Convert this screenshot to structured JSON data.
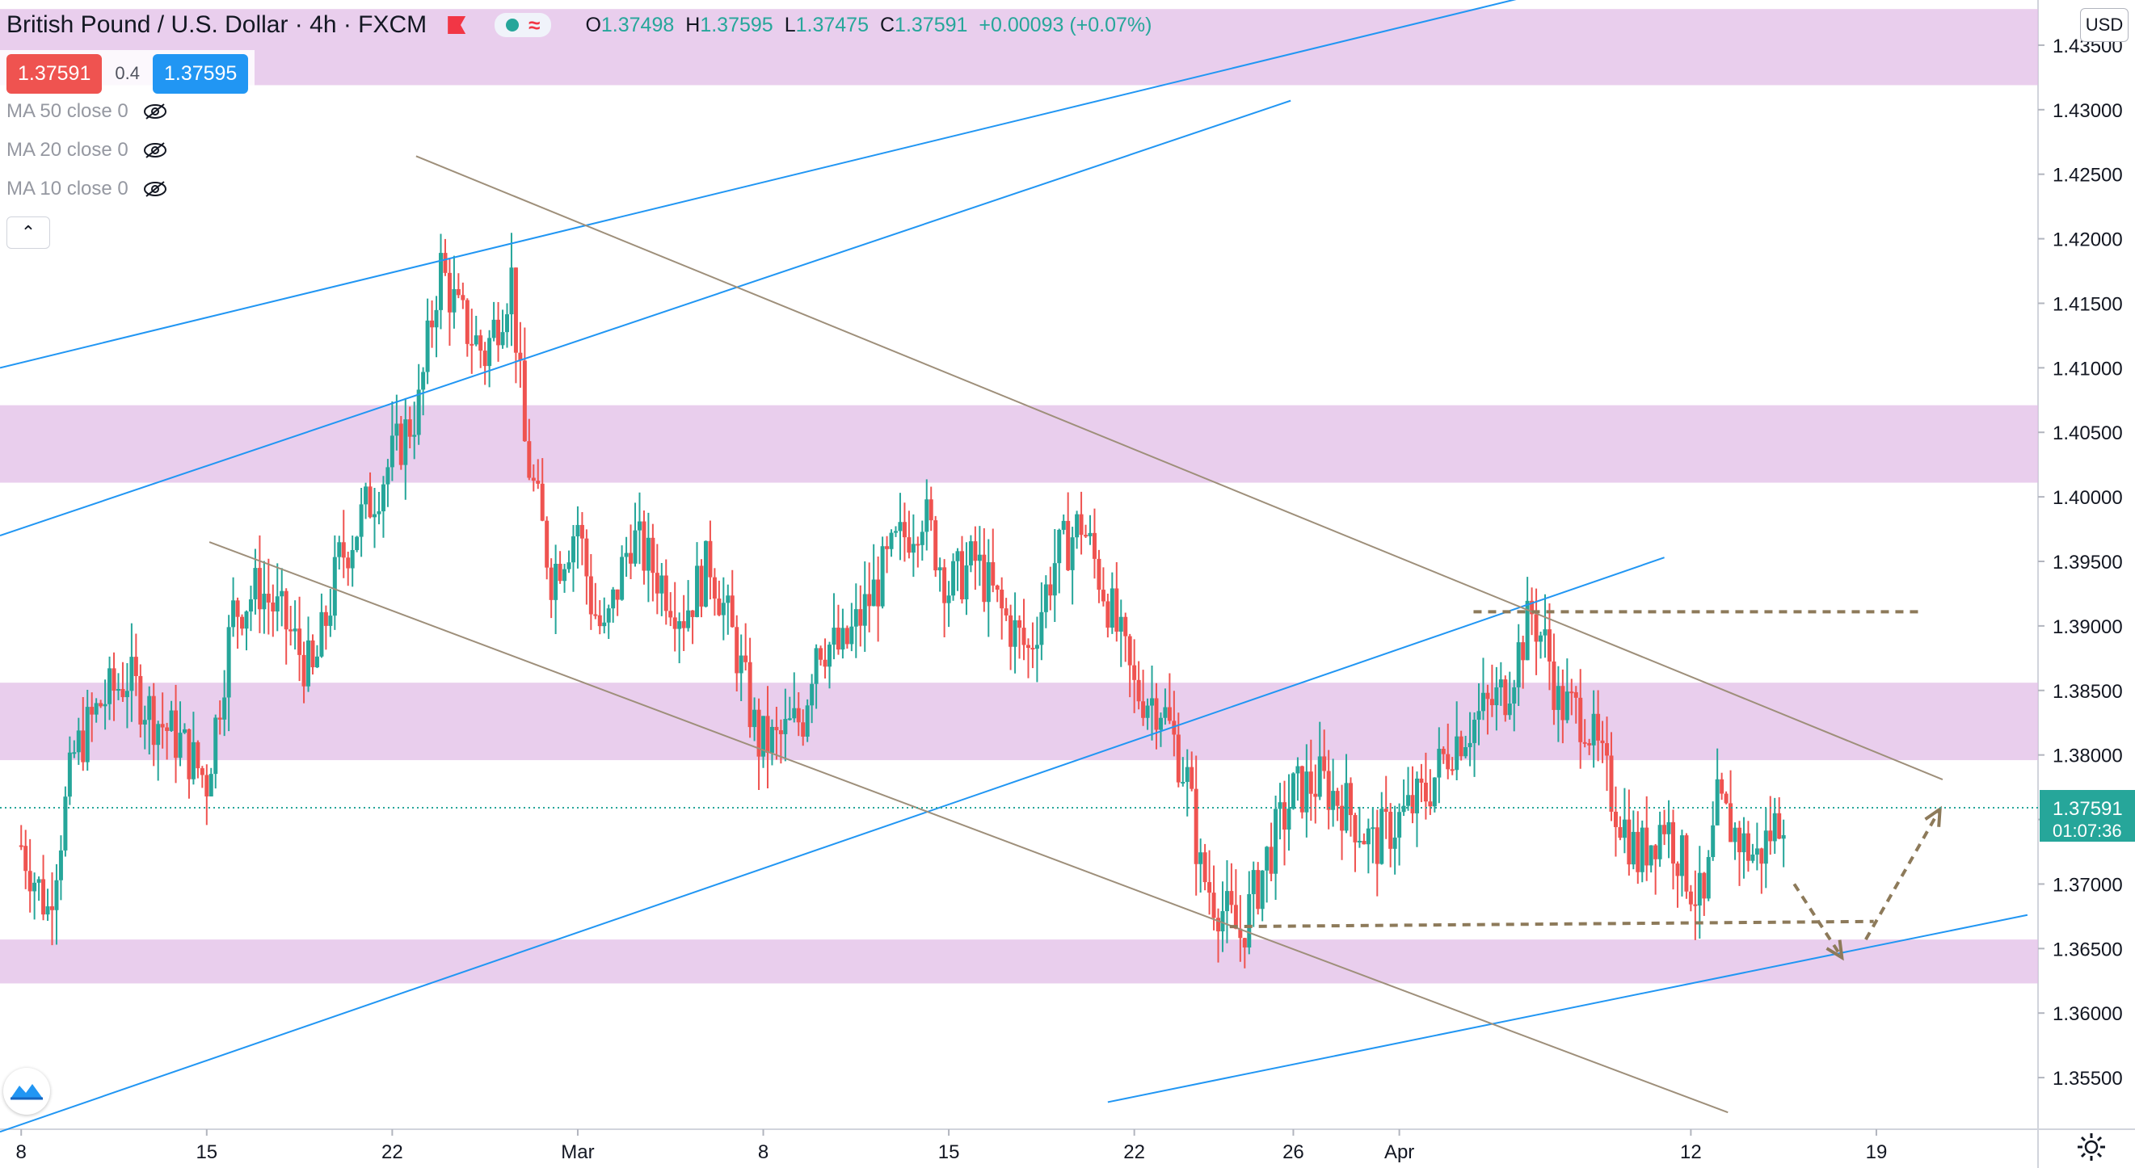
{
  "header": {
    "symbol_title": "British Pound / U.S. Dollar · 4h · FXCM",
    "ohlc": {
      "o_label": "O",
      "o": "1.37498",
      "h_label": "H",
      "h": "1.37595",
      "l_label": "L",
      "l": "1.37475",
      "c_label": "C",
      "c": "1.37591",
      "change": "+0.00093 (+0.07%)"
    },
    "colors": {
      "flag": "#f23645",
      "dot": "#26a69a",
      "wave": "#f23645"
    },
    "icons": [
      "flag-icon",
      "market-open-dot-icon",
      "wave-icon"
    ]
  },
  "trading_box": {
    "sell_price": "1.37591",
    "spread": "0.4",
    "buy_price": "1.37595"
  },
  "indicators": [
    {
      "label": "MA 50 close 0",
      "icon": "eye-crossed-icon"
    },
    {
      "label": "MA 20 close 0",
      "icon": "eye-crossed-icon"
    },
    {
      "label": "MA 10 close 0",
      "icon": "eye-crossed-icon"
    }
  ],
  "axis": {
    "currency": "USD",
    "countdown": "01:07:36",
    "current_price": "1.37591"
  },
  "colors": {
    "up": "#26a69a",
    "down": "#ef5350",
    "zone": "#e1bee7",
    "trend_blue": "#2196f3",
    "trend_gray": "#9e8f7a",
    "dashed": "#8d7a5a",
    "current_line": "#26a69a"
  },
  "chart_data": {
    "type": "candlestick",
    "title": "British Pound / U.S. Dollar · 4h · FXCM",
    "ylim": [
      1.351,
      1.4385
    ],
    "y_ticks": [
      "1.35500",
      "1.36000",
      "1.36500",
      "1.37000",
      "1.37500",
      "1.38000",
      "1.38500",
      "1.39000",
      "1.39500",
      "1.40000",
      "1.40500",
      "1.41000",
      "1.41500",
      "1.42000",
      "1.42500",
      "1.43000",
      "1.43500"
    ],
    "x_ticks": [
      {
        "label": "8",
        "day": 0
      },
      {
        "label": "15",
        "day": 7
      },
      {
        "label": "22",
        "day": 14
      },
      {
        "label": "Mar",
        "day": 21
      },
      {
        "label": "8",
        "day": 28
      },
      {
        "label": "15",
        "day": 35
      },
      {
        "label": "22",
        "day": 42
      },
      {
        "label": "26",
        "day": 48
      },
      {
        "label": "Apr",
        "day": 52
      },
      {
        "label": "12",
        "day": 63
      },
      {
        "label": "19",
        "day": 70
      }
    ],
    "x_range_days": [
      -0.8,
      76.1
    ],
    "start_date": "2021-02-08",
    "price_path": [
      [
        0,
        1.373
      ],
      [
        1,
        1.368
      ],
      [
        2,
        1.38
      ],
      [
        3,
        1.384
      ],
      [
        4,
        1.386
      ],
      [
        5,
        1.383
      ],
      [
        6,
        1.381
      ],
      [
        7,
        1.378
      ],
      [
        8,
        1.391
      ],
      [
        9,
        1.393
      ],
      [
        10,
        1.39
      ],
      [
        11,
        1.386
      ],
      [
        12,
        1.395
      ],
      [
        13,
        1.399
      ],
      [
        14,
        1.403
      ],
      [
        15,
        1.407
      ],
      [
        15.8,
        1.418
      ],
      [
        16.5,
        1.414
      ],
      [
        17.5,
        1.411
      ],
      [
        18.5,
        1.417
      ],
      [
        19,
        1.404
      ],
      [
        20,
        1.394
      ],
      [
        21,
        1.398
      ],
      [
        21.5,
        1.392
      ],
      [
        22,
        1.389
      ],
      [
        23,
        1.397
      ],
      [
        24,
        1.394
      ],
      [
        25,
        1.391
      ],
      [
        26,
        1.395
      ],
      [
        27,
        1.388
      ],
      [
        27.8,
        1.381
      ],
      [
        28.5,
        1.381
      ],
      [
        29.5,
        1.383
      ],
      [
        30,
        1.389
      ],
      [
        31,
        1.388
      ],
      [
        32,
        1.392
      ],
      [
        33,
        1.396
      ],
      [
        34,
        1.399
      ],
      [
        35,
        1.393
      ],
      [
        36,
        1.395
      ],
      [
        37,
        1.391
      ],
      [
        38,
        1.388
      ],
      [
        39,
        1.395
      ],
      [
        40,
        1.398
      ],
      [
        41,
        1.392
      ],
      [
        42,
        1.385
      ],
      [
        43,
        1.384
      ],
      [
        44,
        1.378
      ],
      [
        44.5,
        1.371
      ],
      [
        45,
        1.369
      ],
      [
        46,
        1.366
      ],
      [
        47,
        1.372
      ],
      [
        48,
        1.377
      ],
      [
        49,
        1.378
      ],
      [
        50,
        1.376
      ],
      [
        51,
        1.373
      ],
      [
        52,
        1.375
      ],
      [
        53,
        1.377
      ],
      [
        54,
        1.381
      ],
      [
        55,
        1.383
      ],
      [
        56,
        1.385
      ],
      [
        57,
        1.391
      ],
      [
        57.6,
        1.388
      ],
      [
        58,
        1.384
      ],
      [
        59,
        1.383
      ],
      [
        60,
        1.377
      ],
      [
        61,
        1.372
      ],
      [
        62,
        1.375
      ],
      [
        63,
        1.37
      ],
      [
        63.5,
        1.368
      ],
      [
        64,
        1.376
      ],
      [
        65,
        1.373
      ],
      [
        65.5,
        1.372
      ],
      [
        66.5,
        1.3759
      ]
    ],
    "zones": [
      [
        1.4319,
        1.4378
      ],
      [
        1.4011,
        1.4071
      ],
      [
        1.3796,
        1.3856
      ],
      [
        1.3623,
        1.3657
      ]
    ],
    "trendlines": [
      {
        "color": "blue",
        "from": [
          -0.8,
          1.41
        ],
        "to": [
          62.5,
          1.4416
        ]
      },
      {
        "color": "blue",
        "from": [
          -0.8,
          1.397
        ],
        "to": [
          47.9,
          1.4307
        ]
      },
      {
        "color": "blue",
        "from": [
          -0.8,
          1.3508
        ],
        "to": [
          62.0,
          1.3953
        ]
      },
      {
        "color": "blue",
        "from": [
          41.0,
          1.3531
        ],
        "to": [
          75.7,
          1.3676
        ]
      },
      {
        "color": "gray",
        "from": [
          14.9,
          1.4264
        ],
        "to": [
          72.5,
          1.3781
        ]
      },
      {
        "color": "gray",
        "from": [
          7.1,
          1.3965
        ],
        "to": [
          64.4,
          1.3523
        ]
      }
    ],
    "dashed_levels": [
      {
        "from": [
          54.8,
          1.3911
        ],
        "to": [
          71.8,
          1.3911
        ]
      },
      {
        "from": [
          45.6,
          1.3667
        ],
        "to": [
          69.9,
          1.3671
        ]
      }
    ],
    "projection": [
      [
        66.9,
        1.37
      ],
      [
        68.7,
        1.3643
      ],
      [
        69.6,
        1.3657
      ],
      [
        72.4,
        1.3758
      ]
    ]
  }
}
